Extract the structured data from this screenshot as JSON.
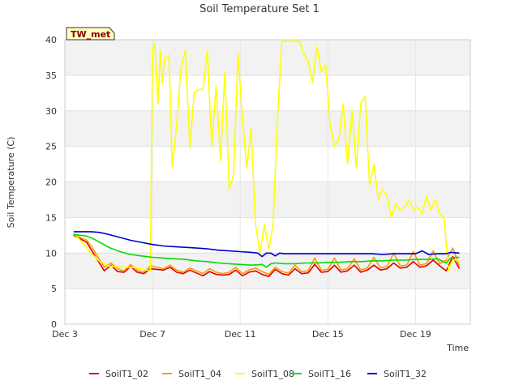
{
  "chart_data": {
    "type": "line",
    "title": "Soil Temperature Set 1",
    "xlabel": "Time",
    "ylabel": "Soil Temperature (C)",
    "badge": "TW_met",
    "ylim": [
      0,
      40
    ],
    "xlim": [
      3,
      21.5
    ],
    "yticks": [
      0,
      5,
      10,
      15,
      20,
      25,
      30,
      35,
      40
    ],
    "xticks": [
      {
        "value": 3,
        "label": "Dec 3"
      },
      {
        "value": 7,
        "label": "Dec 7"
      },
      {
        "value": 11,
        "label": "Dec 11"
      },
      {
        "value": 15,
        "label": "Dec 15"
      },
      {
        "value": 19,
        "label": "Dec 19"
      }
    ],
    "grid": true,
    "legend_position": "bottom",
    "series": [
      {
        "name": "SoilT1_02",
        "color": "#e00000",
        "x": [
          3.4,
          3.7,
          4.0,
          4.2,
          4.5,
          4.8,
          5.1,
          5.4,
          5.7,
          6.0,
          6.3,
          6.6,
          6.9,
          7.2,
          7.5,
          7.8,
          8.1,
          8.4,
          8.7,
          9.0,
          9.3,
          9.6,
          9.9,
          10.2,
          10.5,
          10.8,
          11.1,
          11.4,
          11.7,
          12.0,
          12.3,
          12.6,
          12.9,
          13.2,
          13.5,
          13.8,
          14.1,
          14.4,
          14.7,
          15.0,
          15.3,
          15.6,
          15.9,
          16.2,
          16.5,
          16.8,
          17.1,
          17.4,
          17.7,
          18.0,
          18.3,
          18.6,
          18.9,
          19.2,
          19.5,
          19.8,
          20.1,
          20.4,
          20.7,
          21.0
        ],
        "y": [
          12.5,
          12.0,
          11.5,
          10.5,
          9.0,
          7.5,
          8.3,
          7.4,
          7.3,
          8.1,
          7.3,
          7.1,
          7.8,
          7.7,
          7.6,
          8.0,
          7.3,
          7.1,
          7.6,
          7.2,
          6.8,
          7.4,
          7.0,
          6.9,
          7.0,
          7.6,
          6.8,
          7.3,
          7.5,
          7.0,
          6.7,
          7.7,
          7.1,
          6.9,
          7.8,
          7.1,
          7.2,
          8.4,
          7.3,
          7.4,
          8.3,
          7.3,
          7.5,
          8.3,
          7.3,
          7.6,
          8.3,
          7.6,
          7.8,
          8.6,
          7.9,
          8.0,
          8.8,
          8.0,
          8.2,
          9.0,
          8.2,
          7.5,
          9.5,
          7.8
        ]
      },
      {
        "name": "SoilT1_04",
        "color": "#ff9900",
        "x": [
          3.4,
          3.7,
          4.0,
          4.2,
          4.5,
          4.8,
          5.1,
          5.4,
          5.7,
          6.0,
          6.3,
          6.6,
          6.9,
          7.2,
          7.5,
          7.8,
          8.1,
          8.4,
          8.7,
          9.0,
          9.3,
          9.6,
          9.9,
          10.2,
          10.5,
          10.8,
          11.1,
          11.4,
          11.7,
          12.0,
          12.3,
          12.6,
          12.9,
          13.2,
          13.5,
          13.8,
          14.1,
          14.4,
          14.7,
          15.0,
          15.3,
          15.6,
          15.9,
          16.2,
          16.5,
          16.8,
          17.1,
          17.4,
          17.7,
          18.0,
          18.3,
          18.6,
          18.9,
          19.2,
          19.5,
          19.8,
          20.1,
          20.4,
          20.7,
          21.0
        ],
        "y": [
          12.6,
          12.2,
          11.8,
          11.0,
          9.5,
          8.0,
          8.6,
          7.8,
          7.5,
          8.4,
          7.6,
          7.3,
          8.2,
          8.0,
          7.8,
          8.3,
          7.6,
          7.3,
          7.9,
          7.5,
          7.1,
          7.8,
          7.3,
          7.1,
          7.3,
          8.0,
          7.1,
          7.6,
          7.9,
          7.4,
          7.0,
          8.0,
          7.4,
          7.2,
          8.3,
          7.4,
          7.5,
          9.3,
          7.6,
          7.7,
          9.3,
          7.6,
          7.8,
          9.2,
          7.6,
          7.9,
          9.4,
          7.9,
          8.1,
          10.0,
          8.2,
          8.3,
          10.2,
          8.3,
          8.5,
          10.3,
          8.5,
          9.0,
          10.7,
          8.2
        ]
      },
      {
        "name": "SoilT1_08",
        "color": "#ffff00",
        "x": [
          3.4,
          3.8,
          4.2,
          4.6,
          5.0,
          5.5,
          6.0,
          6.5,
          6.9,
          7.0,
          7.1,
          7.25,
          7.35,
          7.45,
          7.55,
          7.65,
          7.75,
          7.9,
          8.1,
          8.3,
          8.5,
          8.7,
          8.9,
          9.1,
          9.3,
          9.5,
          9.7,
          9.9,
          10.1,
          10.3,
          10.5,
          10.7,
          10.9,
          11.1,
          11.3,
          11.5,
          11.7,
          11.9,
          12.1,
          12.3,
          12.5,
          12.7,
          12.9,
          13.1,
          13.3,
          13.5,
          13.7,
          13.9,
          14.1,
          14.3,
          14.5,
          14.7,
          14.9,
          15.1,
          15.3,
          15.5,
          15.7,
          15.9,
          16.1,
          16.3,
          16.5,
          16.7,
          16.9,
          17.1,
          17.3,
          17.5,
          17.7,
          17.9,
          18.1,
          18.3,
          18.5,
          18.7,
          18.9,
          19.1,
          19.3,
          19.5,
          19.7,
          19.9,
          20.1,
          20.3,
          20.5,
          20.7,
          21.0
        ],
        "y": [
          12.8,
          11.5,
          10.0,
          8.8,
          8.2,
          8.0,
          8.0,
          7.8,
          7.5,
          38.5,
          39.5,
          31.0,
          38.5,
          34.0,
          37.5,
          37.5,
          37.8,
          22.0,
          28.0,
          36.0,
          38.5,
          24.8,
          32.5,
          33.0,
          33.0,
          38.5,
          25.0,
          33.5,
          23.0,
          35.5,
          19.0,
          21.0,
          38.0,
          29.0,
          22.0,
          27.5,
          14.0,
          10.0,
          14.0,
          10.5,
          14.0,
          29.0,
          39.8,
          39.8,
          39.8,
          39.8,
          39.8,
          38.0,
          37.0,
          34.0,
          39.0,
          35.5,
          36.5,
          28.0,
          25.0,
          26.0,
          31.0,
          22.5,
          30.0,
          22.0,
          31.0,
          32.0,
          19.5,
          22.5,
          17.5,
          19.0,
          18.0,
          15.0,
          17.0,
          16.0,
          16.5,
          17.5,
          16.0,
          16.5,
          15.5,
          18.0,
          16.0,
          17.5,
          15.5,
          15.0,
          7.5,
          9.0,
          9.0
        ]
      },
      {
        "name": "SoilT1_16",
        "color": "#00dd00",
        "x": [
          3.4,
          3.7,
          4.0,
          4.3,
          4.6,
          5.0,
          5.5,
          6.0,
          6.5,
          7.0,
          7.5,
          8.0,
          8.5,
          9.0,
          9.5,
          10.0,
          10.5,
          11.0,
          11.5,
          12.0,
          12.2,
          12.4,
          12.6,
          13.0,
          13.5,
          14.0,
          14.5,
          15.0,
          15.5,
          16.0,
          16.5,
          17.0,
          17.5,
          18.0,
          18.5,
          19.0,
          19.5,
          20.0,
          20.4,
          20.6,
          20.8,
          21.0
        ],
        "y": [
          12.6,
          12.5,
          12.4,
          12.0,
          11.5,
          10.8,
          10.2,
          9.8,
          9.6,
          9.4,
          9.3,
          9.2,
          9.1,
          8.9,
          8.8,
          8.6,
          8.5,
          8.4,
          8.3,
          8.4,
          8.0,
          8.5,
          8.6,
          8.5,
          8.5,
          8.6,
          8.6,
          8.7,
          8.7,
          8.8,
          8.8,
          8.9,
          8.9,
          9.0,
          9.0,
          9.1,
          9.1,
          9.2,
          8.6,
          9.3,
          9.4,
          9.4
        ]
      },
      {
        "name": "SoilT1_32",
        "color": "#0000cc",
        "x": [
          3.4,
          3.8,
          4.2,
          4.6,
          5.0,
          5.5,
          6.0,
          6.5,
          7.0,
          7.5,
          8.0,
          8.5,
          9.0,
          9.5,
          10.0,
          10.5,
          11.0,
          11.5,
          11.8,
          12.0,
          12.2,
          12.4,
          12.6,
          12.8,
          13.0,
          13.5,
          14.0,
          14.5,
          15.0,
          15.5,
          16.0,
          16.5,
          17.0,
          17.5,
          18.0,
          18.5,
          19.0,
          19.3,
          19.6,
          20.0,
          20.4,
          20.6,
          21.0
        ],
        "y": [
          13.0,
          13.0,
          13.0,
          12.9,
          12.6,
          12.2,
          11.8,
          11.5,
          11.2,
          11.0,
          10.9,
          10.8,
          10.7,
          10.6,
          10.4,
          10.3,
          10.2,
          10.1,
          10.0,
          9.5,
          10.0,
          10.0,
          9.6,
          10.0,
          9.9,
          9.9,
          9.9,
          9.9,
          9.9,
          9.9,
          9.9,
          9.9,
          9.9,
          9.8,
          9.9,
          9.9,
          9.9,
          10.3,
          9.8,
          9.9,
          9.9,
          10.1,
          10.0
        ]
      }
    ]
  }
}
